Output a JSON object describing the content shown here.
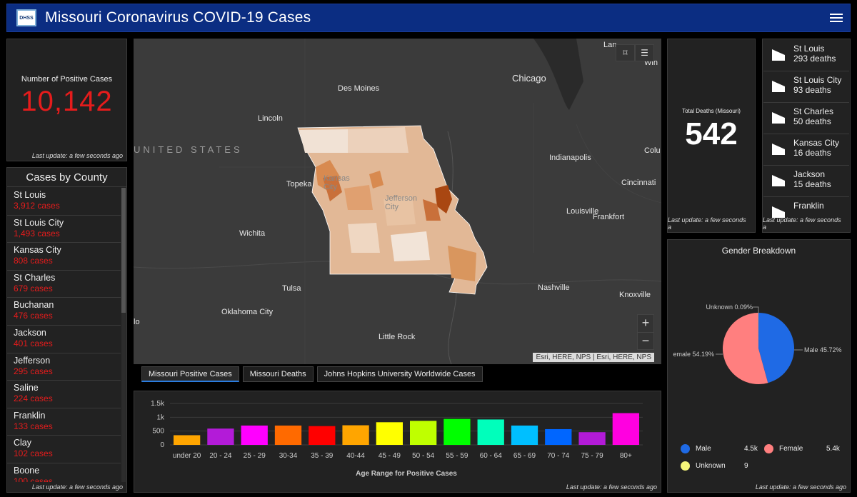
{
  "header": {
    "title": "Missouri Coronavirus COVID-19 Cases",
    "logo_text": "DHSS"
  },
  "positive": {
    "label": "Number of Positive Cases",
    "value": "10,142",
    "update": "Last update: a few seconds ago"
  },
  "counties": {
    "title": "Cases by County",
    "items": [
      {
        "name": "St Louis",
        "cases": "3,912 cases"
      },
      {
        "name": "St Louis City",
        "cases": "1,493 cases"
      },
      {
        "name": "Kansas City",
        "cases": "808 cases"
      },
      {
        "name": "St Charles",
        "cases": "679 cases"
      },
      {
        "name": "Buchanan",
        "cases": "476 cases"
      },
      {
        "name": "Jackson",
        "cases": "401 cases"
      },
      {
        "name": "Jefferson",
        "cases": "295 cases"
      },
      {
        "name": "Saline",
        "cases": "224 cases"
      },
      {
        "name": "Franklin",
        "cases": "133 cases"
      },
      {
        "name": "Clay",
        "cases": "102 cases"
      },
      {
        "name": "Boone",
        "cases": "100 cases"
      }
    ],
    "update": "Last update: a few seconds ago"
  },
  "map": {
    "labels": [
      "Des Moines",
      "Chicago",
      "Lincoln",
      "UNITED STATES",
      "Indianapolis",
      "Colu",
      "Topeka",
      "Kansas City",
      "Jefferson City",
      "Cincinnati",
      "Louisville",
      "Frankfort",
      "Wichita",
      "Tulsa",
      "Nashville",
      "Knoxville",
      "Oklahoma City",
      "Little Rock",
      "Lan",
      "Win",
      "lo"
    ],
    "attribution": "Esri, HERE, NPS | Esri, HERE, NPS",
    "zoom_in": "+",
    "zoom_out": "−"
  },
  "tabs": [
    "Missouri Positive Cases",
    "Missouri Deaths",
    "Johns Hopkins University Worldwide Cases"
  ],
  "deaths": {
    "label": "Total Deaths (Missouri)",
    "value": "542",
    "update": "Last update: a few seconds a"
  },
  "death_list": {
    "items": [
      {
        "name": "St Louis",
        "deaths": "293 deaths"
      },
      {
        "name": "St Louis City",
        "deaths": "93 deaths"
      },
      {
        "name": "St Charles",
        "deaths": "50 deaths"
      },
      {
        "name": "Kansas City",
        "deaths": "16 deaths"
      },
      {
        "name": "Jackson",
        "deaths": "15 deaths"
      },
      {
        "name": "Franklin",
        "deaths": ""
      }
    ],
    "update": "Last update: a few seconds a"
  },
  "gender": {
    "title": "Gender Breakdown",
    "update": "Last update: a few seconds ago",
    "legend": [
      {
        "name": "Male",
        "value": "4.5k",
        "color": "#1f6ae5"
      },
      {
        "name": "Female",
        "value": "5.4k",
        "color": "#ff7f7f"
      },
      {
        "name": "Unknown",
        "value": "9",
        "color": "#f5f57a"
      }
    ],
    "labels": {
      "unknown": "Unknown 0.09%",
      "male": "Male 45.72%",
      "female": "emale 54.19%"
    }
  },
  "age_chart_update": "Last update: a few seconds ago",
  "chart_data": [
    {
      "type": "bar",
      "title": "",
      "xlabel": "Age Range for Positive Cases",
      "ylabel": "",
      "categories": [
        "under 20",
        "20 - 24",
        "25 - 29",
        "30-34",
        "35 - 39",
        "40-44",
        "45 - 49",
        "50 - 54",
        "55 - 59",
        "60 - 64",
        "65 - 69",
        "70 - 74",
        "75 - 79",
        "80+"
      ],
      "values": [
        350,
        590,
        700,
        700,
        680,
        710,
        820,
        870,
        940,
        920,
        700,
        570,
        460,
        1150
      ],
      "colors": [
        "#ffa500",
        "#b31bd8",
        "#ff00ff",
        "#ff6a00",
        "#ff0000",
        "#ffa500",
        "#ffff00",
        "#bfff00",
        "#00ff00",
        "#00ffbb",
        "#00bfff",
        "#0066ff",
        "#b31bd8",
        "#ff00e0"
      ],
      "yticks": [
        "0",
        "500",
        "1k",
        "1.5k"
      ],
      "ylim": [
        0,
        1500
      ]
    },
    {
      "type": "pie",
      "title": "Gender Breakdown",
      "categories": [
        "Male",
        "Female",
        "Unknown"
      ],
      "values": [
        45.72,
        54.19,
        0.09
      ],
      "colors": [
        "#1f6ae5",
        "#ff7f7f",
        "#f5f57a"
      ]
    }
  ]
}
